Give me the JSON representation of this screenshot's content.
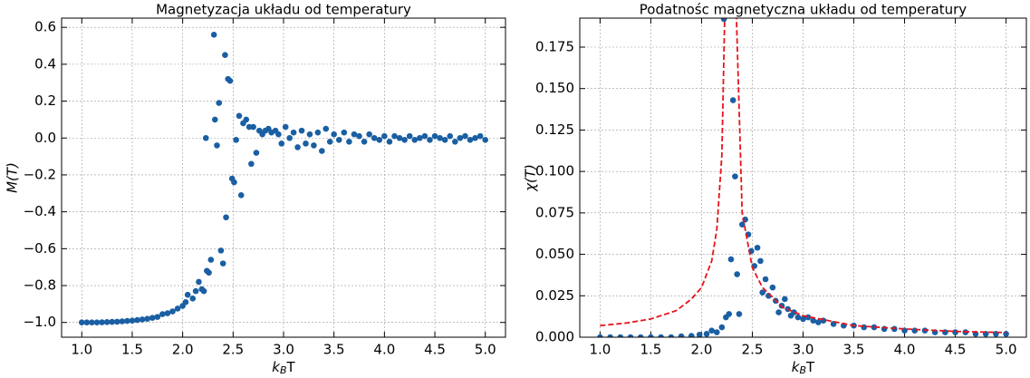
{
  "chart_data": [
    {
      "type": "scatter",
      "title": "Magnetyzacja układu od temperatury",
      "xlabel": {
        "main": "k",
        "sub": "B",
        "rest": "T"
      },
      "ylabel": "M(T)",
      "xlim": [
        0.8,
        5.2
      ],
      "ylim": [
        -1.08,
        0.65
      ],
      "xticks": [
        {
          "value": 1.0,
          "label": "1.0"
        },
        {
          "value": 1.5,
          "label": "1.5"
        },
        {
          "value": 2.0,
          "label": "2.0"
        },
        {
          "value": 2.5,
          "label": "2.5"
        },
        {
          "value": 3.0,
          "label": "3.0"
        },
        {
          "value": 3.5,
          "label": "3.5"
        },
        {
          "value": 4.0,
          "label": "4.0"
        },
        {
          "value": 4.5,
          "label": "4.5"
        },
        {
          "value": 5.0,
          "label": "5.0"
        }
      ],
      "yticks": [
        {
          "value": -1.0,
          "label": "−1.0"
        },
        {
          "value": -0.8,
          "label": "−0.8"
        },
        {
          "value": -0.6,
          "label": "−0.6"
        },
        {
          "value": -0.4,
          "label": "−0.4"
        },
        {
          "value": -0.2,
          "label": "−0.2"
        },
        {
          "value": 0.0,
          "label": "0.0"
        },
        {
          "value": 0.2,
          "label": "0.2"
        },
        {
          "value": 0.4,
          "label": "0.4"
        },
        {
          "value": 0.6,
          "label": "0.6"
        }
      ],
      "grid": true,
      "series": [
        {
          "type": "scatter",
          "color": "#1a5fa3",
          "x": [
            1.0,
            1.05,
            1.1,
            1.15,
            1.2,
            1.25,
            1.3,
            1.35,
            1.4,
            1.45,
            1.5,
            1.55,
            1.6,
            1.65,
            1.7,
            1.75,
            1.8,
            1.85,
            1.9,
            1.95,
            2.0,
            2.03,
            2.05,
            2.1,
            2.13,
            2.16,
            2.19,
            2.21,
            2.23,
            2.24,
            2.26,
            2.28,
            2.31,
            2.32,
            2.34,
            2.36,
            2.38,
            2.4,
            2.42,
            2.43,
            2.45,
            2.47,
            2.49,
            2.51,
            2.53,
            2.56,
            2.58,
            2.6,
            2.63,
            2.66,
            2.68,
            2.7,
            2.73,
            2.76,
            2.79,
            2.82,
            2.85,
            2.88,
            2.92,
            2.95,
            2.98,
            3.02,
            3.06,
            3.1,
            3.14,
            3.18,
            3.22,
            3.26,
            3.3,
            3.34,
            3.38,
            3.42,
            3.46,
            3.5,
            3.55,
            3.6,
            3.65,
            3.7,
            3.75,
            3.8,
            3.85,
            3.9,
            3.95,
            4.0,
            4.05,
            4.1,
            4.15,
            4.2,
            4.25,
            4.3,
            4.35,
            4.4,
            4.45,
            4.5,
            4.55,
            4.6,
            4.65,
            4.7,
            4.75,
            4.8,
            4.85,
            4.9,
            4.95,
            5.0
          ],
          "values": [
            -1.0,
            -1.0,
            -1.0,
            -1.0,
            -0.999,
            -0.998,
            -0.997,
            -0.996,
            -0.994,
            -0.992,
            -0.99,
            -0.987,
            -0.984,
            -0.98,
            -0.975,
            -0.97,
            -0.955,
            -0.95,
            -0.94,
            -0.925,
            -0.91,
            -0.89,
            -0.85,
            -0.87,
            -0.83,
            -0.78,
            -0.82,
            -0.83,
            0.0,
            -0.72,
            -0.73,
            -0.66,
            0.56,
            0.1,
            -0.04,
            0.19,
            -0.61,
            -0.68,
            0.45,
            -0.43,
            0.32,
            0.31,
            -0.22,
            -0.24,
            -0.01,
            0.12,
            -0.31,
            0.08,
            0.1,
            0.06,
            -0.14,
            0.06,
            -0.08,
            0.04,
            0.02,
            0.04,
            0.05,
            0.03,
            0.04,
            0.02,
            -0.03,
            0.06,
            0.0,
            0.03,
            -0.05,
            0.04,
            -0.03,
            0.02,
            -0.04,
            0.03,
            -0.07,
            0.05,
            -0.02,
            0.02,
            -0.01,
            0.03,
            -0.02,
            0.02,
            0.01,
            -0.02,
            0.02,
            0.0,
            -0.01,
            0.01,
            -0.02,
            0.01,
            0.0,
            -0.01,
            0.01,
            -0.01,
            0.0,
            0.01,
            -0.01,
            0.01,
            0.0,
            -0.01,
            0.01,
            -0.02,
            0.0,
            0.01,
            -0.01,
            0.0,
            0.01,
            -0.01
          ]
        }
      ]
    },
    {
      "type": "scatter",
      "title": "Podatnośc magnetyczna układu od temperatury",
      "xlabel": {
        "main": "k",
        "sub": "B",
        "rest": "T"
      },
      "ylabel": "χ(T)",
      "xlim": [
        0.8,
        5.2
      ],
      "ylim": [
        0,
        0.1925
      ],
      "xticks": [
        {
          "value": 1.0,
          "label": "1.0"
        },
        {
          "value": 1.5,
          "label": "1.5"
        },
        {
          "value": 2.0,
          "label": "2.0"
        },
        {
          "value": 2.5,
          "label": "2.5"
        },
        {
          "value": 3.0,
          "label": "3.0"
        },
        {
          "value": 3.5,
          "label": "3.5"
        },
        {
          "value": 4.0,
          "label": "4.0"
        },
        {
          "value": 4.5,
          "label": "4.5"
        },
        {
          "value": 5.0,
          "label": "5.0"
        }
      ],
      "yticks": [
        {
          "value": 0,
          "label": "0.000"
        },
        {
          "value": 0.025,
          "label": "0.025"
        },
        {
          "value": 0.05,
          "label": "0.050"
        },
        {
          "value": 0.075,
          "label": "0.075"
        },
        {
          "value": 0.1,
          "label": "0.100"
        },
        {
          "value": 0.125,
          "label": "0.125"
        },
        {
          "value": 0.15,
          "label": "0.150"
        },
        {
          "value": 0.175,
          "label": "0.175"
        }
      ],
      "grid": true,
      "series": [
        {
          "type": "scatter",
          "color": "#1a5fa3",
          "x": [
            1.0,
            1.1,
            1.2,
            1.3,
            1.4,
            1.5,
            1.6,
            1.7,
            1.8,
            1.9,
            1.98,
            2.05,
            2.1,
            2.15,
            2.2,
            2.22,
            2.24,
            2.27,
            2.29,
            2.31,
            2.33,
            2.35,
            2.37,
            2.4,
            2.43,
            2.46,
            2.49,
            2.52,
            2.55,
            2.58,
            2.6,
            2.63,
            2.66,
            2.7,
            2.73,
            2.76,
            2.79,
            2.82,
            2.85,
            2.88,
            2.91,
            2.95,
            3.0,
            3.05,
            3.1,
            3.15,
            3.2,
            3.3,
            3.4,
            3.5,
            3.6,
            3.7,
            3.8,
            3.9,
            4.0,
            4.1,
            4.2,
            4.3,
            4.4,
            4.5,
            4.6,
            4.7,
            4.8,
            4.9,
            5.0
          ],
          "values": [
            0,
            0,
            0,
            0,
            0,
            0,
            0,
            0,
            0.0005,
            0.0008,
            0.0015,
            0.002,
            0.004,
            0.003,
            0.006,
            0.192,
            0.012,
            0.014,
            0.047,
            0.143,
            0.097,
            0.038,
            0.014,
            0.068,
            0.071,
            0.062,
            0.052,
            0.043,
            0.054,
            0.046,
            0.027,
            0.035,
            0.025,
            0.03,
            0.022,
            0.015,
            0.019,
            0.023,
            0.017,
            0.013,
            0.015,
            0.012,
            0.011,
            0.012,
            0.01,
            0.009,
            0.01,
            0.008,
            0.007,
            0.007,
            0.006,
            0.006,
            0.005,
            0.005,
            0.004,
            0.004,
            0.004,
            0.003,
            0.003,
            0.003,
            0.003,
            0.002,
            0.002,
            0.002,
            0.002
          ]
        },
        {
          "type": "line",
          "color": "#e8141c",
          "dashed": true,
          "x": [
            1.0,
            1.25,
            1.5,
            1.75,
            1.9,
            2.0,
            2.1,
            2.15,
            2.2,
            2.23,
            2.269,
            2.34,
            2.4,
            2.5,
            2.6,
            2.8,
            3.0,
            3.5,
            4.0,
            4.5,
            5.0
          ],
          "values": [
            0.007,
            0.0085,
            0.011,
            0.016,
            0.023,
            0.03,
            0.046,
            0.065,
            0.11,
            0.2,
            null,
            0.2,
            0.075,
            0.042,
            0.03,
            0.018,
            0.013,
            0.007,
            0.005,
            0.0035,
            0.0028
          ]
        }
      ]
    }
  ]
}
